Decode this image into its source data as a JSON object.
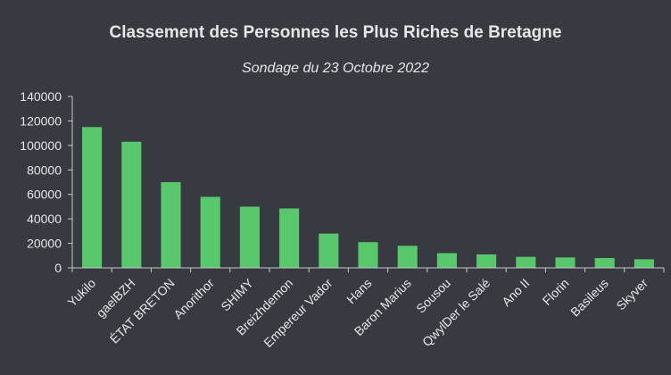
{
  "chart_data": {
    "type": "bar",
    "title": "Classement des Personnes les Plus Riches de Bretagne",
    "subtitle": "Sondage du 23 Octobre 2022",
    "xlabel": "",
    "ylabel": "",
    "ylim": [
      0,
      140000
    ],
    "yticks": [
      0,
      20000,
      40000,
      60000,
      80000,
      100000,
      120000,
      140000
    ],
    "grid": false,
    "legend": "none",
    "colors": {
      "background": "#383a42",
      "bar": "#59c86d",
      "text": "#e6e6e6",
      "axis": "#c8c8c8"
    },
    "categories": [
      "Yukilo",
      "gaelBZH",
      "ÉTAT BRETON",
      "Anorithor",
      "SHIMY",
      "Breizhdemon",
      "Empereur Vador",
      "Hans",
      "Baron Marius",
      "Sousou",
      "QwylDer le Salé",
      "Ano II",
      "Florin",
      "Basileus",
      "Skyver"
    ],
    "values": [
      115000,
      103000,
      70000,
      58000,
      50000,
      48500,
      28000,
      21000,
      18000,
      12000,
      11000,
      9000,
      8500,
      8000,
      7000
    ]
  }
}
